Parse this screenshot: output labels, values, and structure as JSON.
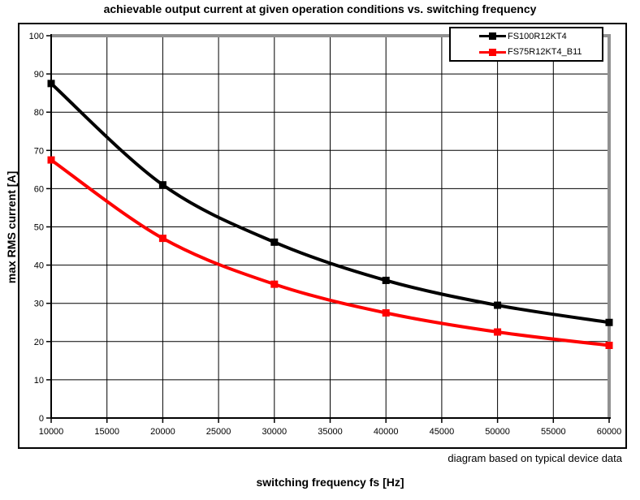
{
  "title": "achievable output current at given operation conditions vs. switching frequency",
  "footnote": "diagram based on typical device data",
  "axes": {
    "xlabel": "switching frequency fs [Hz]",
    "ylabel": "max RMS current [A]"
  },
  "chart_data": {
    "type": "line",
    "title": "achievable output current at given operation conditions vs. switching frequency",
    "xlabel": "switching frequency fs [Hz]",
    "ylabel": "max RMS current [A]",
    "x": [
      10000,
      20000,
      30000,
      40000,
      50000,
      60000
    ],
    "series": [
      {
        "name": "FS100R12KT4",
        "color": "#000000",
        "marker": "square",
        "values": [
          87.5,
          61,
          46,
          36,
          29.5,
          25
        ]
      },
      {
        "name": "FS75R12KT4_B11",
        "color": "#ff0000",
        "marker": "square",
        "values": [
          67.5,
          47,
          35,
          27.5,
          22.5,
          19
        ]
      }
    ],
    "xlim": [
      10000,
      60000
    ],
    "ylim": [
      0,
      100
    ],
    "x_ticks": [
      10000,
      15000,
      20000,
      25000,
      30000,
      35000,
      40000,
      45000,
      50000,
      55000,
      60000
    ],
    "y_ticks": [
      0,
      10,
      20,
      30,
      40,
      50,
      60,
      70,
      80,
      90,
      100
    ],
    "grid": true,
    "legend_position": "top-right",
    "annotation": "diagram based on typical device data",
    "colors": {
      "grid": "#000000",
      "border_gray": "#919191",
      "axis": "#000000"
    }
  }
}
